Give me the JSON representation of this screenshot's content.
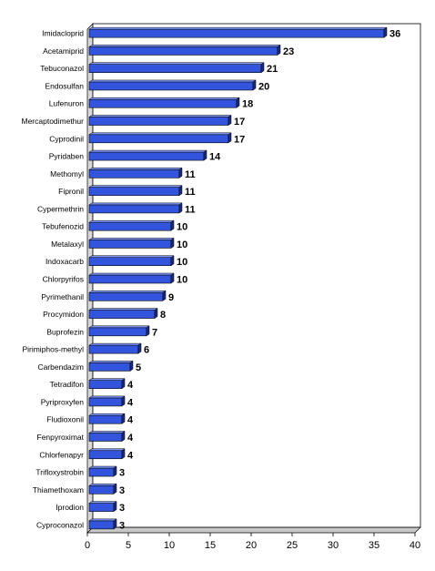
{
  "chart_data": {
    "type": "bar",
    "orientation": "horizontal",
    "categories": [
      "Imidacloprid",
      "Acetamiprid",
      "Tebuconazol",
      "Endosulfan",
      "Lufenuron",
      "Mercaptodimethur",
      "Cyprodinil",
      "Pyridaben",
      "Methomyl",
      "Fipronil",
      "Cypermethrin",
      "Tebufenozid",
      "Metalaxyl",
      "Indoxacarb",
      "Chlorpyrifos",
      "Pyrimethanil",
      "Procymidon",
      "Buprofezin",
      "Pirimiphos-methyl",
      "Carbendazim",
      "Tetradifon",
      "Pyriproxyfen",
      "Fludioxonil",
      "Fenpyroximat",
      "Chlorfenapyr",
      "Trifloxystrobin",
      "Thiamethoxam",
      "Iprodion",
      "Cyproconazol"
    ],
    "values": [
      36,
      23,
      21,
      20,
      18,
      17,
      17,
      14,
      11,
      11,
      11,
      10,
      10,
      10,
      10,
      9,
      8,
      7,
      6,
      5,
      4,
      4,
      4,
      4,
      4,
      3,
      3,
      3,
      3
    ],
    "value_labels": [
      "36",
      "23",
      "21",
      "20",
      "18",
      "17",
      "17",
      "14",
      "11",
      "11",
      "11",
      "10",
      "10",
      "10",
      "10",
      "9",
      "8",
      "7",
      "6",
      "5",
      "4",
      "4",
      "4",
      "4",
      "4",
      "3",
      "3",
      "3",
      "3"
    ],
    "xlim": [
      0,
      40
    ],
    "xticks": [
      "0",
      "5",
      "10",
      "15",
      "20",
      "25",
      "30",
      "35",
      "40"
    ],
    "title": "",
    "xlabel": "",
    "ylabel": "",
    "grid": false,
    "bar_color": "#3355dd",
    "bar_dark": "#1a2a80",
    "bar_light": "#7f99ff"
  }
}
